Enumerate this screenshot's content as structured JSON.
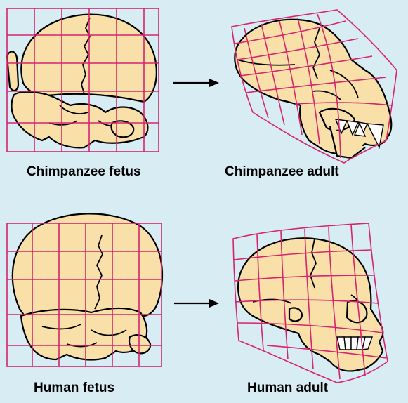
{
  "labels": {
    "chimp_fetus": "Chimpanzee fetus",
    "chimp_adult": "Chimpanzee adult",
    "human_fetus": "Human fetus",
    "human_adult": "Human adult"
  },
  "colors": {
    "background": "#d8ecf4",
    "bone": "#f8e0a8",
    "grid": "#d6246e",
    "outline": "#000000"
  }
}
